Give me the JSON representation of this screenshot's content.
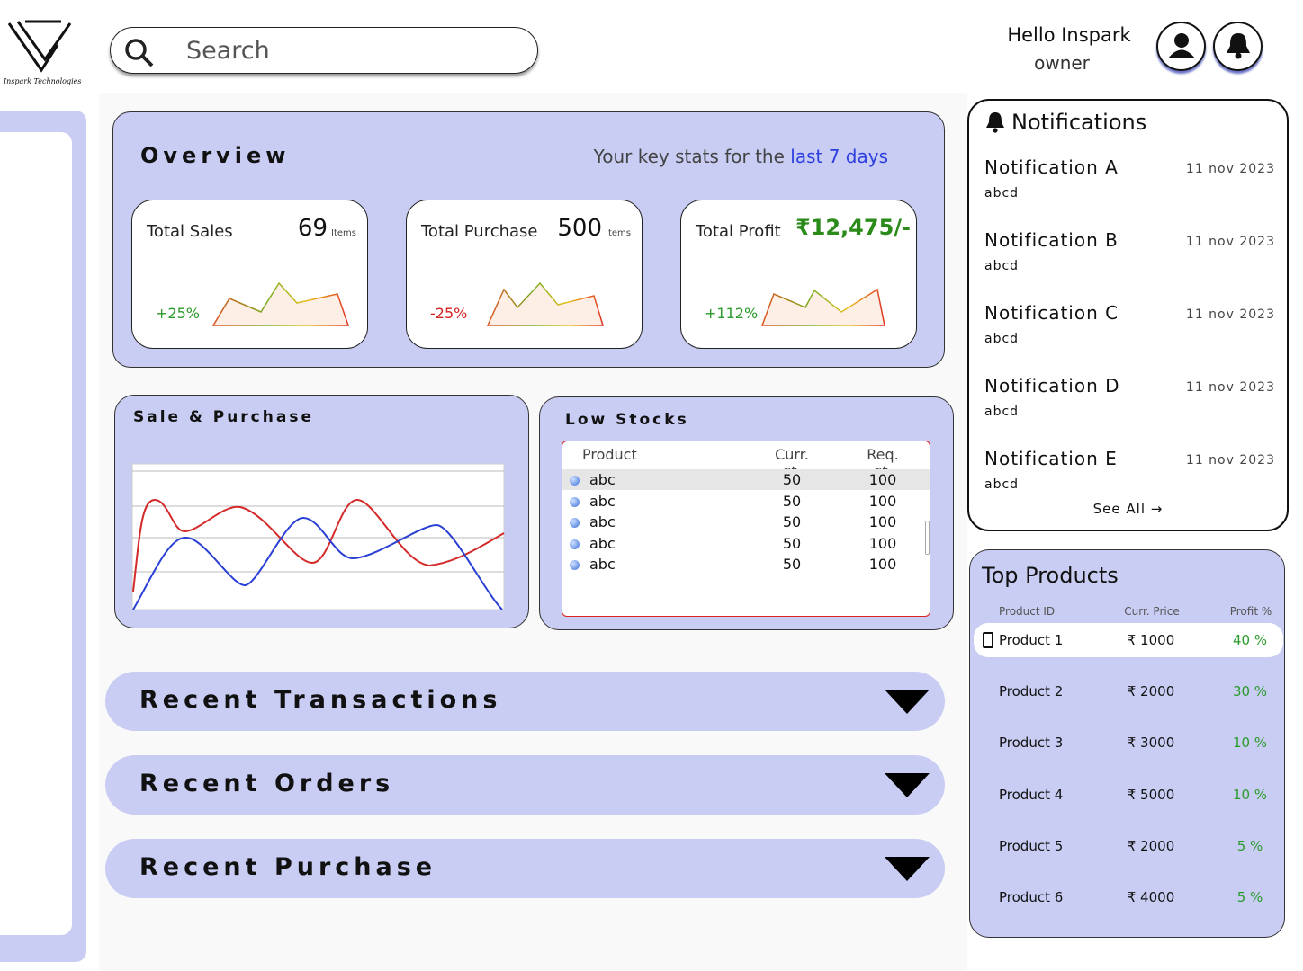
{
  "header": {
    "logo_caption": "Inspark Technologies",
    "search_placeholder": "Search",
    "greeting": "Hello Inspark",
    "role": "owner"
  },
  "overview": {
    "title": "Overview",
    "subtitle": "Your key stats for the",
    "subtitle_highlight": "last 7 days",
    "cards": [
      {
        "label": "Total Sales",
        "value": "69",
        "unit": "Items",
        "change": "+25%"
      },
      {
        "label": "Total Purchase",
        "value": "500",
        "unit": "Items",
        "change": "-25%"
      },
      {
        "label": "Total Profit",
        "value": "₹12,475/-",
        "change": "+112%"
      }
    ]
  },
  "sale_purchase": {
    "title": "Sale & Purchase"
  },
  "low_stocks": {
    "title": "Low Stocks",
    "columns": [
      "Product",
      "Curr. qt.",
      "Req. qt."
    ],
    "rows": [
      [
        "abc",
        "50",
        "100"
      ],
      [
        "abc",
        "50",
        "100"
      ],
      [
        "abc",
        "50",
        "100"
      ],
      [
        "abc",
        "50",
        "100"
      ],
      [
        "abc",
        "50",
        "100"
      ]
    ]
  },
  "sections": [
    "Recent Transactions",
    "Recent Orders",
    "Recent Purchase"
  ],
  "notifications": {
    "title": "Notifications",
    "items": [
      {
        "title": "Notification A",
        "body": "abcd",
        "date": "11 nov 2023"
      },
      {
        "title": "Notification B",
        "body": "abcd",
        "date": "11 nov 2023"
      },
      {
        "title": "Notification C",
        "body": "abcd",
        "date": "11 nov 2023"
      },
      {
        "title": "Notification D",
        "body": "abcd",
        "date": "11 nov 2023"
      },
      {
        "title": "Notification E",
        "body": "abcd",
        "date": "11 nov 2023"
      }
    ],
    "see_all": "See All →"
  },
  "top_products": {
    "title": "Top Products",
    "columns": [
      "Product ID",
      "Curr. Price",
      "Profit %"
    ],
    "rows": [
      [
        "Product 1",
        "₹ 1000",
        "40 %"
      ],
      [
        "Product 2",
        "₹ 2000",
        "30 %"
      ],
      [
        "Product 3",
        "₹ 3000",
        "10 %"
      ],
      [
        "Product 4",
        "₹ 5000",
        "10 %"
      ],
      [
        "Product 5",
        "₹ 2000",
        "5 %"
      ],
      [
        "Product 6",
        "₹ 4000",
        "5 %"
      ]
    ]
  }
}
